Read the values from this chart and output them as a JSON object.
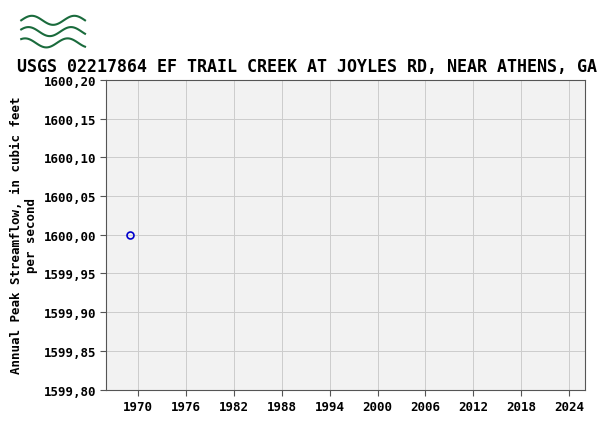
{
  "title": "USGS 02217864 EF TRAIL CREEK AT JOYLES RD, NEAR ATHENS, GA",
  "ylabel": "Annual Peak Streamflow, in cubic feet\nper second",
  "xlabel": "",
  "data_x": [
    1969
  ],
  "data_y": [
    1600.0
  ],
  "marker_color": "#0000cc",
  "marker_style": "o",
  "marker_size": 5,
  "xlim": [
    1966,
    2026
  ],
  "ylim": [
    1599.8,
    1600.2
  ],
  "xticks": [
    1970,
    1976,
    1982,
    1988,
    1994,
    2000,
    2006,
    2012,
    2018,
    2024
  ],
  "yticks": [
    1599.8,
    1599.85,
    1599.9,
    1599.95,
    1600.0,
    1600.05,
    1600.1,
    1600.15,
    1600.2
  ],
  "grid_color": "#cccccc",
  "plot_bg_color": "#f2f2f2",
  "header_bg_color": "#1a6b3c",
  "title_fontsize": 12,
  "tick_fontsize": 9,
  "ylabel_fontsize": 9,
  "fig_bg_color": "#ffffff"
}
